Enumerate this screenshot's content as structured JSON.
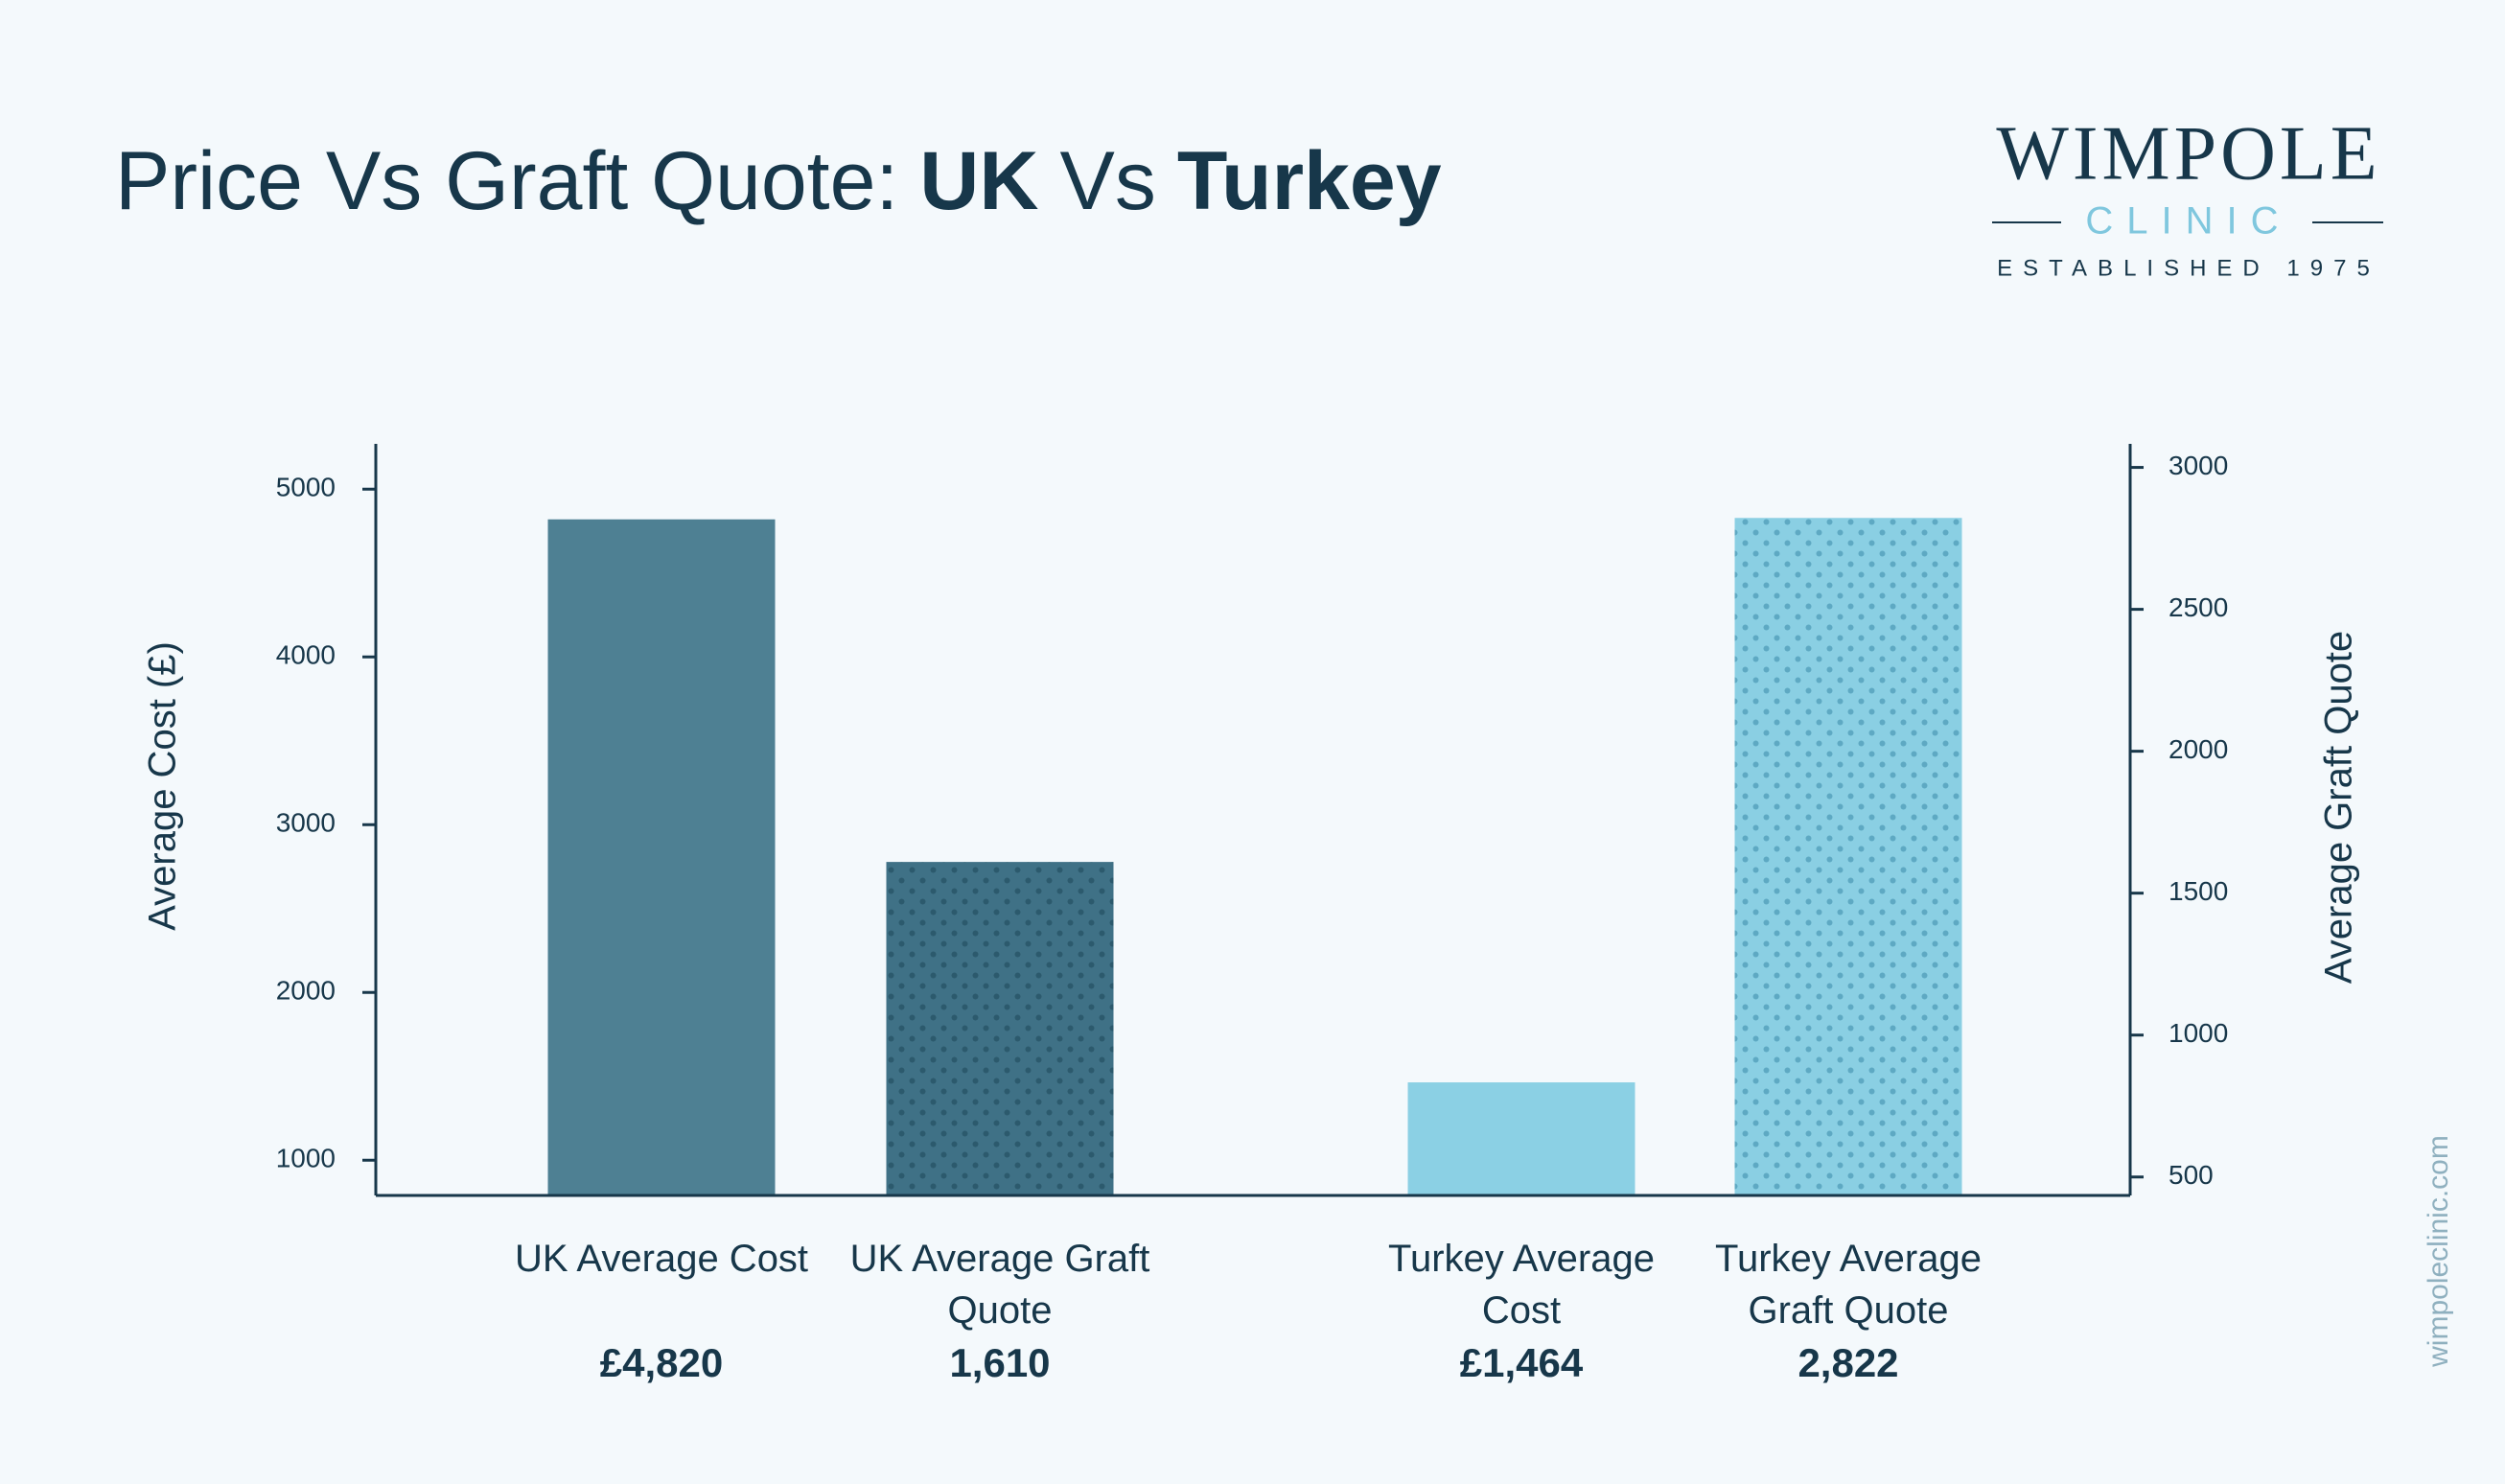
{
  "chart_data": {
    "type": "bar",
    "title": [
      "Price Vs Graft Quote:",
      "UK",
      "Vs",
      "Turkey"
    ],
    "y_label": "Average Cost (£)",
    "y2_label": "Average Graft Quote",
    "categories": [
      "UK Average Cost",
      "UK Average Graft Quote",
      "Turkey Average Cost",
      "Turkey Average Graft Quote"
    ],
    "series": [
      {
        "axis": "y",
        "colors": [
          "#4e8093",
          null,
          "#8bd0e4",
          null
        ],
        "values": [
          4820,
          null,
          1464,
          null
        ],
        "value_labels": [
          "£4,820",
          null,
          "£1,464",
          null
        ]
      },
      {
        "axis": "y2",
        "pattern": "dots",
        "colors": [
          null,
          "#3f7186",
          null,
          "#8acfe3"
        ],
        "dot_colors": [
          null,
          "#2c5a6d",
          null,
          "#5ea9c3"
        ],
        "values": [
          null,
          1610,
          null,
          2822
        ],
        "value_labels": [
          null,
          "1,610",
          null,
          "2,822"
        ]
      }
    ],
    "ylim": [
      790,
      5270
    ],
    "yticks": [
      1000,
      2000,
      3000,
      4000,
      5000
    ],
    "y2lim": [
      435,
      3083
    ],
    "y2ticks": [
      500,
      1000,
      1500,
      2000,
      2500,
      3000
    ]
  },
  "logo": {
    "name": "WIMPOLE",
    "sub": "CLINIC",
    "established": "ESTABLISHED 1975"
  },
  "website": "wimpoleclinic.com"
}
